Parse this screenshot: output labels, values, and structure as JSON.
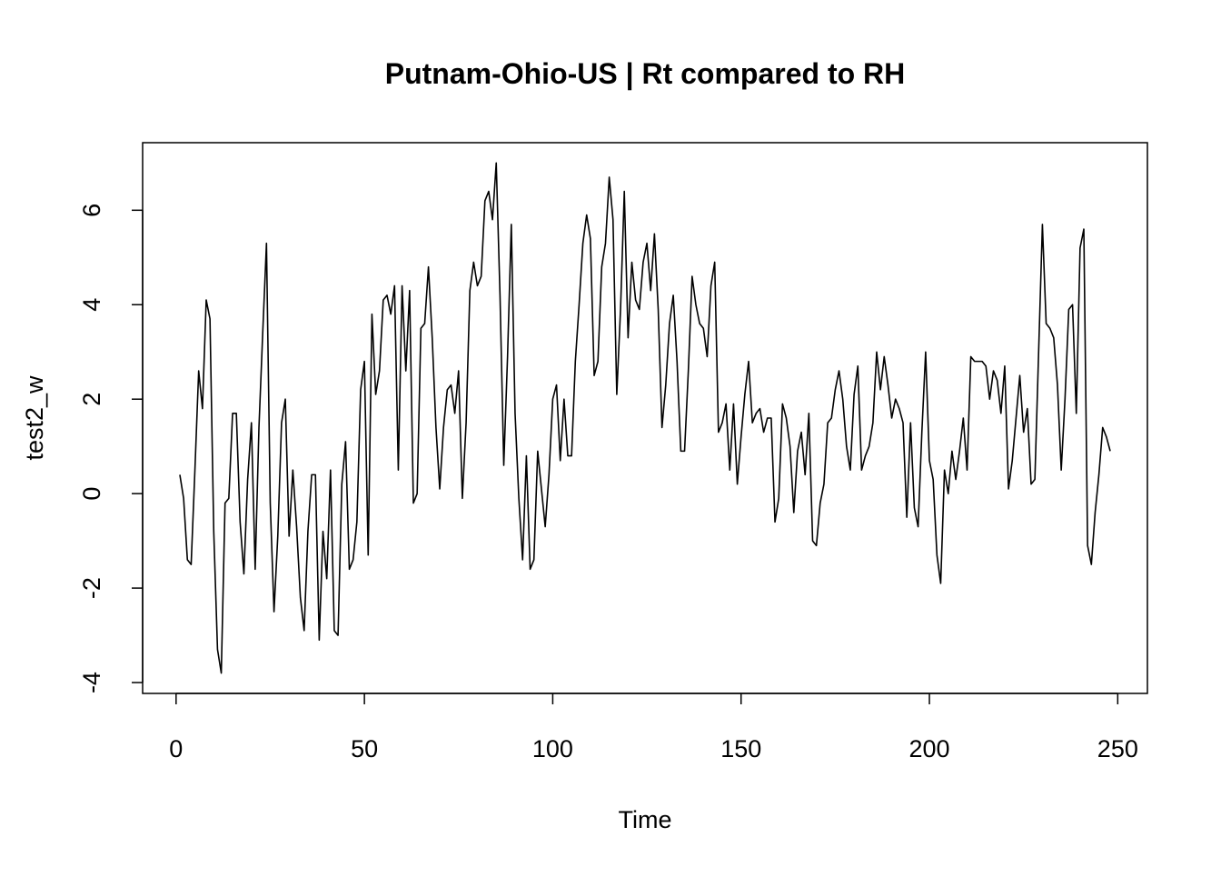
{
  "chart_data": {
    "type": "line",
    "title": "Putnam-Ohio-US | Rt compared to RH",
    "xlabel": "Time",
    "ylabel": "test2_w",
    "color": "#000000",
    "x": [
      1,
      2,
      3,
      4,
      5,
      6,
      7,
      8,
      9,
      10,
      11,
      12,
      13,
      14,
      15,
      16,
      17,
      18,
      19,
      20,
      21,
      22,
      23,
      24,
      25,
      26,
      27,
      28,
      29,
      30,
      31,
      32,
      33,
      34,
      35,
      36,
      37,
      38,
      39,
      40,
      41,
      42,
      43,
      44,
      45,
      46,
      47,
      48,
      49,
      50,
      51,
      52,
      53,
      54,
      55,
      56,
      57,
      58,
      59,
      60,
      61,
      62,
      63,
      64,
      65,
      66,
      67,
      68,
      69,
      70,
      71,
      72,
      73,
      74,
      75,
      76,
      77,
      78,
      79,
      80,
      81,
      82,
      83,
      84,
      85,
      86,
      87,
      88,
      89,
      90,
      91,
      92,
      93,
      94,
      95,
      96,
      97,
      98,
      99,
      100,
      101,
      102,
      103,
      104,
      105,
      106,
      107,
      108,
      109,
      110,
      111,
      112,
      113,
      114,
      115,
      116,
      117,
      118,
      119,
      120,
      121,
      122,
      123,
      124,
      125,
      126,
      127,
      128,
      129,
      130,
      131,
      132,
      133,
      134,
      135,
      136,
      137,
      138,
      139,
      140,
      141,
      142,
      143,
      144,
      145,
      146,
      147,
      148,
      149,
      150,
      151,
      152,
      153,
      154,
      155,
      156,
      157,
      158,
      159,
      160,
      161,
      162,
      163,
      164,
      165,
      166,
      167,
      168,
      169,
      170,
      171,
      172,
      173,
      174,
      175,
      176,
      177,
      178,
      179,
      180,
      181,
      182,
      183,
      184,
      185,
      186,
      187,
      188,
      189,
      190,
      191,
      192,
      193,
      194,
      195,
      196,
      197,
      198,
      199,
      200,
      201,
      202,
      203,
      204,
      205,
      206,
      207,
      208,
      209,
      210,
      211,
      212,
      213,
      214,
      215,
      216,
      217,
      218,
      219,
      220,
      221,
      222,
      223,
      224,
      225,
      226,
      227,
      228,
      229,
      230,
      231,
      232,
      233,
      234,
      235,
      236,
      237,
      238,
      239,
      240,
      241,
      242,
      243,
      244,
      245,
      246,
      247,
      248
    ],
    "values": [
      0.4,
      -0.1,
      -1.4,
      -1.5,
      0.5,
      2.6,
      1.8,
      4.1,
      3.7,
      -0.8,
      -3.3,
      -3.8,
      -0.2,
      -0.1,
      1.7,
      1.7,
      -0.6,
      -1.7,
      0.3,
      1.5,
      -1.6,
      1.4,
      3.4,
      5.3,
      -0.2,
      -2.5,
      -0.9,
      1.5,
      2.0,
      -0.9,
      0.5,
      -0.7,
      -2.2,
      -2.9,
      -0.8,
      0.4,
      0.4,
      -3.1,
      -0.8,
      -1.8,
      0.5,
      -2.9,
      -3.0,
      0.2,
      1.1,
      -1.6,
      -1.4,
      -0.6,
      2.2,
      2.8,
      -1.3,
      3.8,
      2.1,
      2.6,
      4.1,
      4.2,
      3.8,
      4.4,
      0.5,
      4.4,
      2.6,
      4.3,
      -0.2,
      0.0,
      3.5,
      3.6,
      4.8,
      3.3,
      1.4,
      0.1,
      1.4,
      2.2,
      2.3,
      1.7,
      2.6,
      -0.1,
      1.5,
      4.3,
      4.9,
      4.4,
      4.6,
      6.2,
      6.4,
      5.8,
      7.0,
      4.2,
      0.6,
      2.9,
      5.7,
      1.7,
      -0.1,
      -1.4,
      0.8,
      -1.6,
      -1.4,
      0.9,
      0.1,
      -0.7,
      0.4,
      2.0,
      2.3,
      0.7,
      2.0,
      0.8,
      0.8,
      2.8,
      4.0,
      5.3,
      5.9,
      5.4,
      2.5,
      2.8,
      4.8,
      5.3,
      6.7,
      5.8,
      2.1,
      3.9,
      6.4,
      3.3,
      4.9,
      4.1,
      3.9,
      4.9,
      5.3,
      4.3,
      5.5,
      3.9,
      1.4,
      2.3,
      3.6,
      4.2,
      2.8,
      0.9,
      0.9,
      2.6,
      4.6,
      4.0,
      3.6,
      3.5,
      2.9,
      4.4,
      4.9,
      1.3,
      1.5,
      1.9,
      0.5,
      1.9,
      0.2,
      1.2,
      2.1,
      2.8,
      1.5,
      1.7,
      1.8,
      1.3,
      1.6,
      1.6,
      -0.6,
      -0.1,
      1.9,
      1.6,
      1.0,
      -0.4,
      0.9,
      1.3,
      0.4,
      1.7,
      -1.0,
      -1.1,
      -0.2,
      0.2,
      1.5,
      1.6,
      2.2,
      2.6,
      2.0,
      1.0,
      0.5,
      2.1,
      2.7,
      0.5,
      0.8,
      1.0,
      1.5,
      3.0,
      2.2,
      2.9,
      2.3,
      1.6,
      2.0,
      1.8,
      1.5,
      -0.5,
      1.5,
      -0.3,
      -0.7,
      1.3,
      3.0,
      0.7,
      0.3,
      -1.3,
      -1.9,
      0.5,
      0.0,
      0.9,
      0.3,
      0.9,
      1.6,
      0.5,
      2.9,
      2.8,
      2.8,
      2.8,
      2.7,
      2.0,
      2.6,
      2.4,
      1.7,
      2.7,
      0.1,
      0.7,
      1.6,
      2.5,
      1.3,
      1.8,
      0.2,
      0.3,
      3.0,
      5.7,
      3.6,
      3.5,
      3.3,
      2.3,
      0.5,
      2.0,
      3.9,
      4.0,
      1.7,
      5.2,
      5.6,
      -1.1,
      -1.5,
      -0.4,
      0.4,
      1.4,
      1.2,
      0.9
    ],
    "xlim": [
      -8.88,
      257.88
    ],
    "ylim": [
      -4.23,
      7.43
    ],
    "xticks": [
      0,
      50,
      100,
      150,
      200,
      250
    ],
    "yticks": [
      -4,
      -2,
      0,
      2,
      4,
      6
    ]
  }
}
